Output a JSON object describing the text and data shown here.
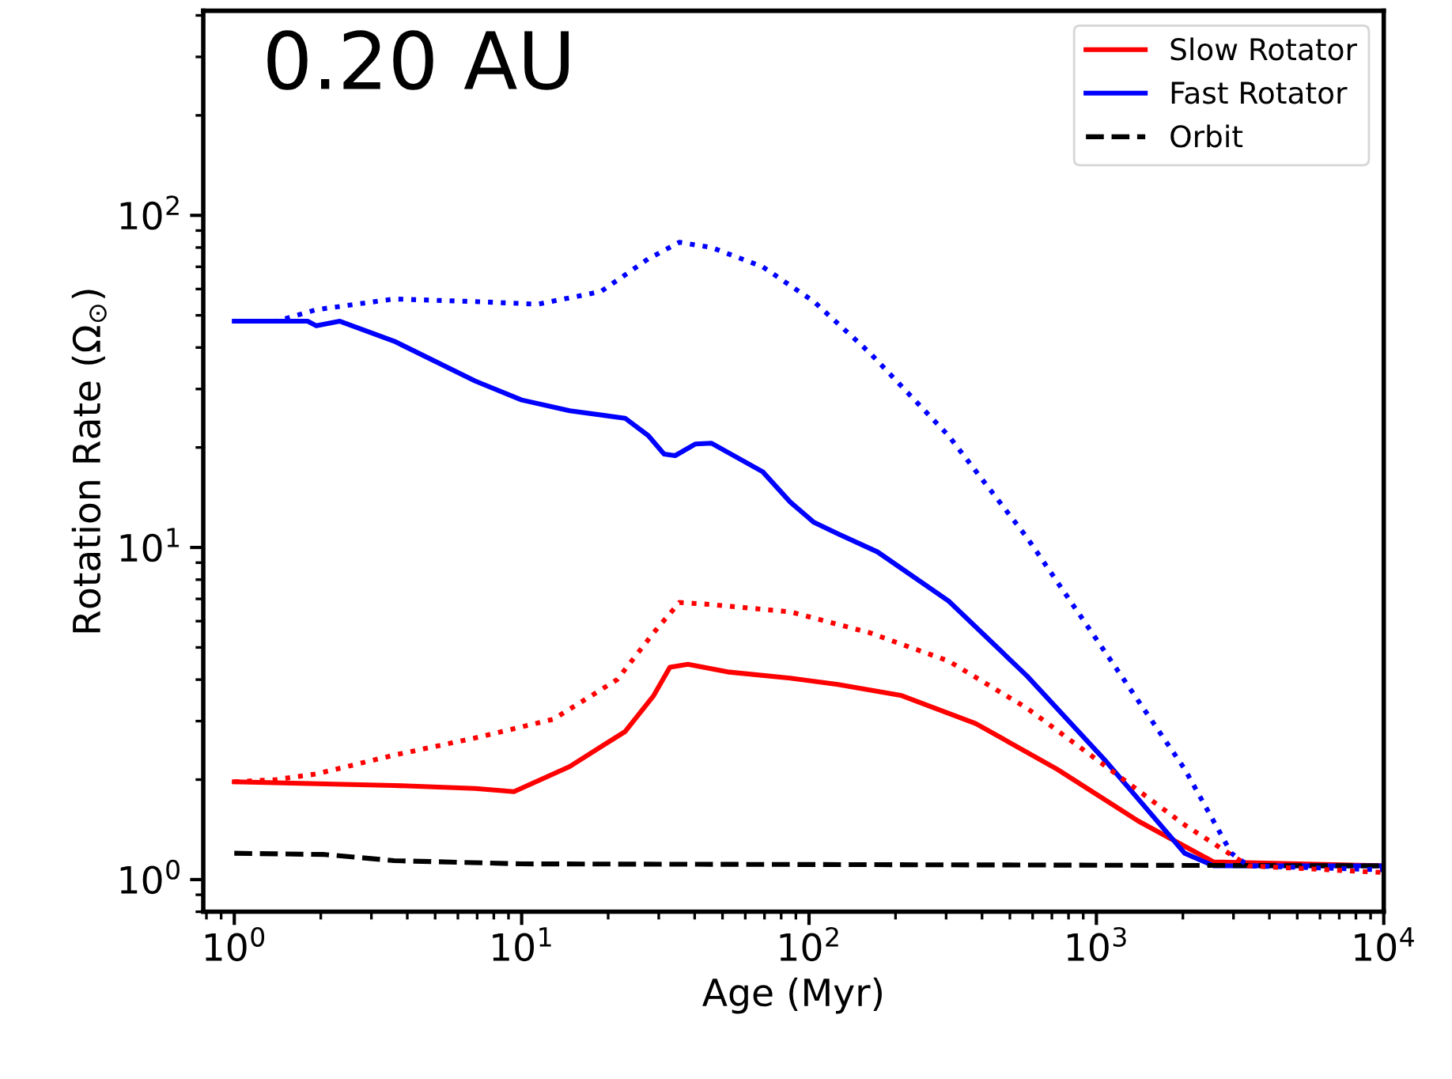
{
  "chart_data": {
    "type": "line",
    "xlabel": "Age (Myr)",
    "ylabel": "Rotation Rate (Ω$_{⊙}$)",
    "annotations": [
      "0.20 AU"
    ],
    "log": "xy",
    "grid": false,
    "legend": "top right",
    "xlim": [
      0.78,
      10000
    ],
    "ylim": [
      0.8,
      413
    ],
    "xticks": [
      {
        "value": 1,
        "label": "10$^{0}$"
      },
      {
        "value": 10,
        "label": "10$^{1}$"
      },
      {
        "value": 100,
        "label": "10$^{2}$"
      },
      {
        "value": 1000,
        "label": "10$^{3}$"
      },
      {
        "value": 10000,
        "label": "10$^{4}$"
      }
    ],
    "yticks": [
      {
        "value": 1,
        "label": "10$^{0}$"
      },
      {
        "value": 10,
        "label": "10$^{1}$"
      },
      {
        "value": 100,
        "label": "10$^{2}$"
      }
    ],
    "series": [
      {
        "name": "Slow Rotator",
        "color": "#ff0000",
        "line_style": "solid",
        "x": [
          1,
          3.6,
          6.9,
          9.4,
          14.7,
          22.9,
          28.8,
          32.8,
          37.9,
          52,
          86,
          126,
          210,
          380,
          730,
          1400,
          2560,
          10000
        ],
        "values": [
          1.97,
          1.92,
          1.88,
          1.84,
          2.19,
          2.79,
          3.58,
          4.36,
          4.45,
          4.22,
          4.04,
          3.87,
          3.58,
          2.95,
          2.15,
          1.5,
          1.13,
          1.1
        ]
      },
      {
        "name": "Fast Rotator",
        "color": "#0000ff",
        "line_style": "solid",
        "x": [
          1,
          1.8,
          1.93,
          2.33,
          3.6,
          6.9,
          10,
          14.7,
          22.9,
          27.6,
          31.3,
          34.2,
          40.3,
          45.8,
          69,
          86,
          104,
          126,
          173,
          306,
          574,
          1080,
          2030,
          2560,
          10000
        ],
        "values": [
          48,
          48,
          46.5,
          48,
          41.8,
          31.7,
          27.8,
          25.8,
          24.5,
          21.7,
          19.1,
          18.9,
          20.5,
          20.6,
          16.9,
          13.7,
          11.9,
          11.0,
          9.7,
          6.9,
          4.1,
          2.27,
          1.2,
          1.1,
          1.1
        ]
      },
      {
        "name": "Orbit",
        "color": "#000000",
        "line_style": "dashed",
        "x": [
          1,
          2.06,
          3.6,
          10,
          10000
        ],
        "values": [
          1.2,
          1.19,
          1.14,
          1.115,
          1.1
        ]
      },
      {
        "color": "#0000ff",
        "line_style": "dotted",
        "x": [
          1,
          1.4,
          1.93,
          3.6,
          6.9,
          11.4,
          18.9,
          27.6,
          35.4,
          45.8,
          69,
          104,
          162,
          306,
          574,
          1080,
          2030,
          2950,
          3380,
          10000
        ],
        "values": [
          48,
          48,
          52,
          56,
          55,
          54,
          59,
          74,
          83,
          80,
          70,
          55,
          38.7,
          21.7,
          10.7,
          4.8,
          2.15,
          1.2,
          1.1,
          1.07
        ]
      },
      {
        "color": "#ff0000",
        "line_style": "dotted",
        "x": [
          1,
          1.4,
          1.93,
          3.6,
          6.9,
          12.9,
          21.5,
          28.8,
          35.4,
          45.8,
          86,
          162,
          306,
          574,
          1080,
          2030,
          3380,
          10000
        ],
        "values": [
          1.97,
          2.0,
          2.08,
          2.37,
          2.67,
          3.04,
          4.0,
          5.54,
          6.83,
          6.73,
          6.4,
          5.54,
          4.55,
          3.28,
          2.19,
          1.46,
          1.1,
          1.05
        ]
      }
    ]
  }
}
